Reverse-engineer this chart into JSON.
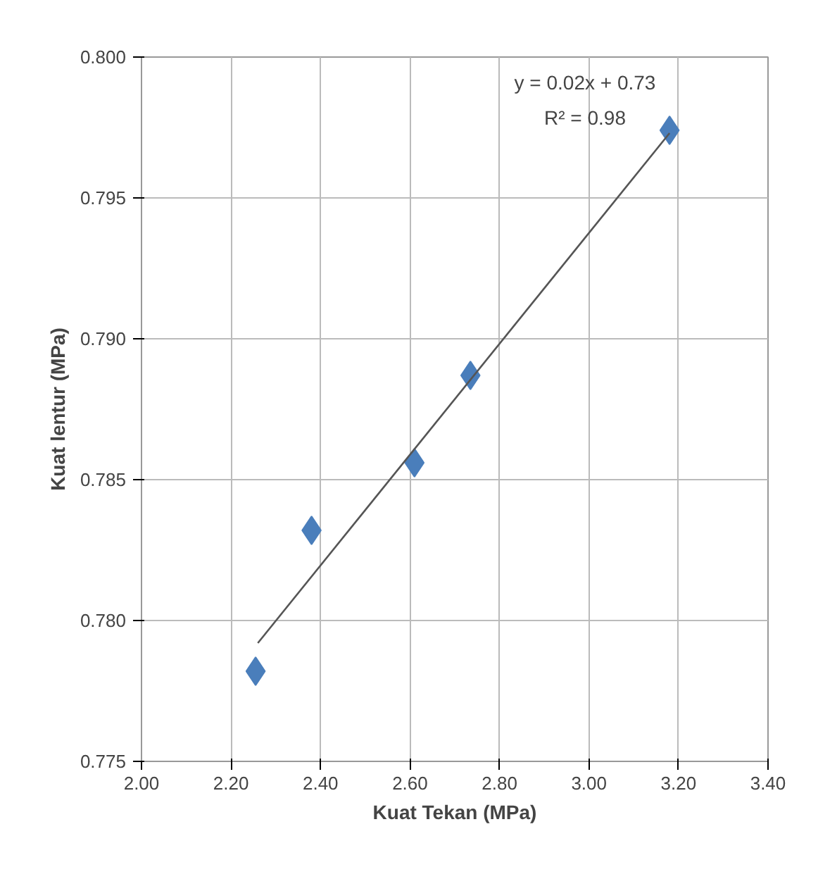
{
  "chart_data": {
    "type": "scatter",
    "xlabel": "Kuat Tekan (MPa)",
    "ylabel": "Kuat lentur (MPa)",
    "annotations": [
      "y = 0.02x + 0.73",
      "R² = 0.98"
    ],
    "series": [
      {
        "color": "#4a7ebb",
        "marker": "diamond",
        "x": [
          2.255,
          2.38,
          2.61,
          2.735,
          3.18
        ],
        "values": [
          0.7782,
          0.7832,
          0.7856,
          0.7887,
          0.7974
        ]
      },
      {
        "type": "line",
        "color": "#555555",
        "marker": "none",
        "x": [
          2.26,
          3.18
        ],
        "values": [
          0.7792,
          0.7973
        ]
      }
    ],
    "xlim": [
      2.0,
      3.4
    ],
    "ylim": [
      0.775,
      0.8
    ],
    "xticks": [
      {
        "value": 2.0,
        "label": "2.00"
      },
      {
        "value": 2.2,
        "label": "2.20"
      },
      {
        "value": 2.4,
        "label": "2.40"
      },
      {
        "value": 2.6,
        "label": "2.60"
      },
      {
        "value": 2.8,
        "label": "2.80"
      },
      {
        "value": 3.0,
        "label": "3.00"
      },
      {
        "value": 3.2,
        "label": "3.20"
      },
      {
        "value": 3.4,
        "label": "3.40"
      }
    ],
    "yticks": [
      0.775,
      {
        "value": 0.78,
        "label": "0.780"
      },
      0.785,
      {
        "value": 0.79,
        "label": "0.790"
      },
      0.795,
      {
        "value": 0.8,
        "label": "0.800"
      }
    ],
    "grid": true
  }
}
